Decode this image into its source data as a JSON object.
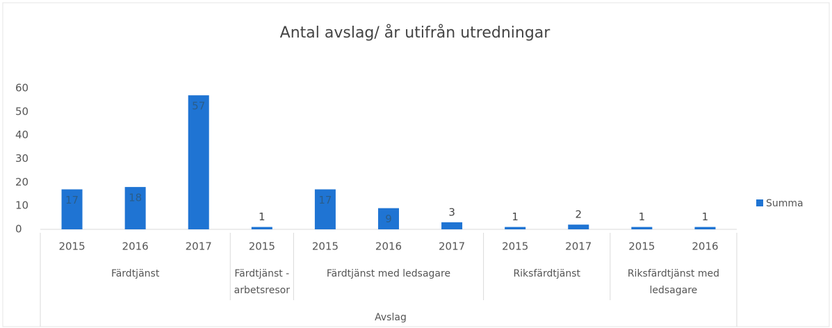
{
  "chart_data": {
    "type": "bar",
    "title": "Antal avslag/ år utifrån utredningar",
    "x_label": "Avslag",
    "groups": [
      {
        "name": "Färdtjänst",
        "categories": [
          "2015",
          "2016",
          "2017"
        ],
        "values": [
          17,
          18,
          57
        ]
      },
      {
        "name": "Färdtjänst - arbetsresor",
        "categories": [
          "2015"
        ],
        "values": [
          1
        ]
      },
      {
        "name": "Färdtjänst med ledsagare",
        "categories": [
          "2015",
          "2016",
          "2017"
        ],
        "values": [
          17,
          9,
          3
        ]
      },
      {
        "name": "Riksfärdtjänst",
        "categories": [
          "2015",
          "2017"
        ],
        "values": [
          1,
          2
        ]
      },
      {
        "name": "Riksfärdtjänst med ledsagare",
        "categories": [
          "2015",
          "2016"
        ],
        "values": [
          1,
          1
        ]
      }
    ],
    "series_name": "Summa",
    "color": "#1f74d3",
    "ylim": [
      0,
      60
    ],
    "yticks": [
      0,
      10,
      20,
      30,
      40,
      50,
      60
    ],
    "legend": "right"
  }
}
